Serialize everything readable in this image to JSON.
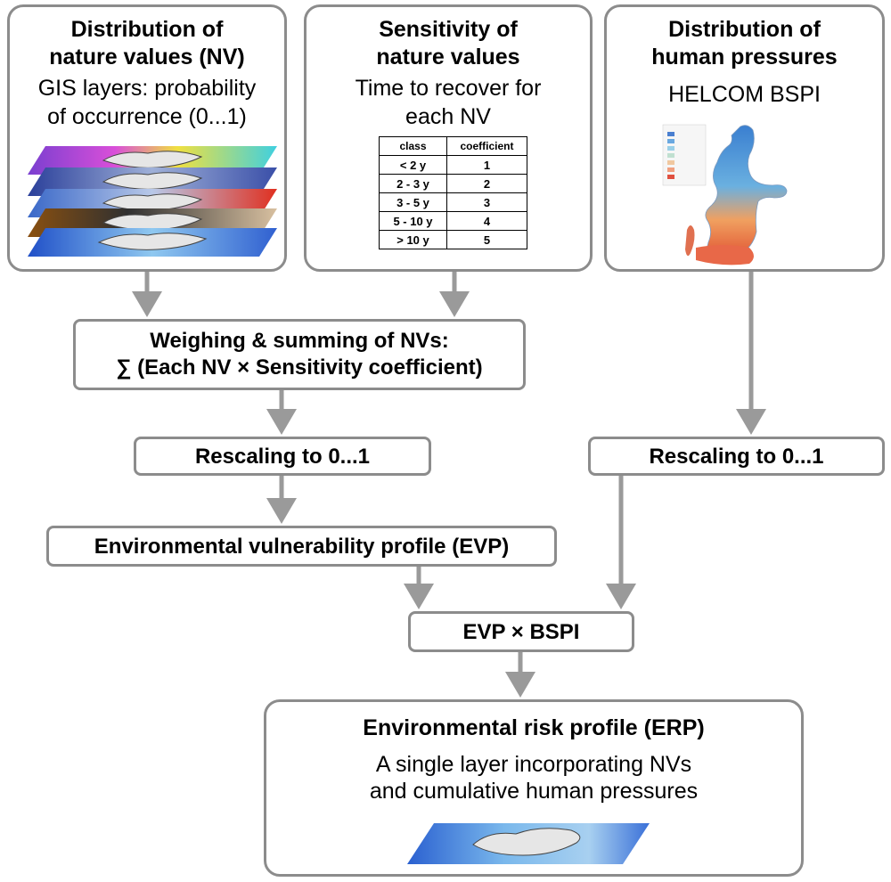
{
  "boxes": {
    "nv": {
      "title": "Distribution of\nnature values (NV)",
      "subtitle": "GIS layers: probability\nof occurrence (0...1)"
    },
    "sensitivity": {
      "title": "Sensitivity of\nnature values",
      "subtitle": "Time to recover for\neach NV",
      "table": {
        "headers": [
          "class",
          "coefficient"
        ],
        "rows": [
          [
            "< 2 y",
            "1"
          ],
          [
            "2 - 3 y",
            "2"
          ],
          [
            "3 - 5 y",
            "3"
          ],
          [
            "5 - 10 y",
            "4"
          ],
          [
            "> 10 y",
            "5"
          ]
        ]
      }
    },
    "pressures": {
      "title": "Distribution of\nhuman pressures",
      "subtitle": "HELCOM BSPI"
    },
    "weighing": {
      "text": "Weighing & summing of NVs:\n∑ (Each NV × Sensitivity coefficient)"
    },
    "rescale_left": {
      "text": "Rescaling to 0...1"
    },
    "rescale_right": {
      "text": "Rescaling to 0...1"
    },
    "evp": {
      "text": "Environmental vulnerability profile (EVP)"
    },
    "product": {
      "text": "EVP × BSPI"
    },
    "erp": {
      "title": "Environmental risk profile (ERP)",
      "subtitle": "A single layer incorporating NVs\nand cumulative human pressures"
    }
  },
  "colors": {
    "border": "#8c8c8c",
    "arrow": "#9a9a9a",
    "land": "#e6e6e6"
  },
  "icons": {
    "nv_layers": "stacked-gis-layers-icon",
    "bspi_map": "baltic-pressure-map-icon",
    "erp_layer": "risk-layer-map-icon"
  }
}
